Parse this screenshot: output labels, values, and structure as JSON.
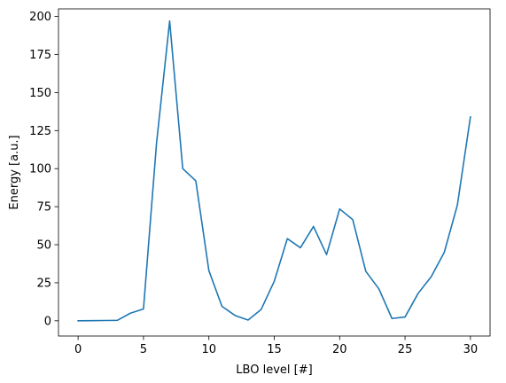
{
  "chart_data": {
    "type": "line",
    "title": "",
    "xlabel": "LBO level [#]",
    "ylabel": "Energy [a.u.]",
    "xlim": [
      -1.5,
      31.5
    ],
    "ylim": [
      -10,
      205
    ],
    "xticks": [
      0,
      5,
      10,
      15,
      20,
      25,
      30
    ],
    "yticks": [
      0,
      25,
      50,
      75,
      100,
      125,
      150,
      175,
      200
    ],
    "grid": false,
    "legend": "none",
    "series": [
      {
        "color": "#1f77b4",
        "x": [
          0,
          1,
          2,
          3,
          4,
          5,
          6,
          7,
          8,
          9,
          10,
          11,
          12,
          13,
          14,
          15,
          16,
          17,
          18,
          19,
          20,
          21,
          22,
          23,
          24,
          25,
          26,
          27,
          28,
          29,
          30
        ],
        "y": [
          0,
          0.1,
          0.2,
          0.3,
          5,
          7.8,
          117,
          197,
          100,
          92,
          33,
          9.5,
          3.5,
          0.5,
          7.5,
          26,
          54,
          48,
          62,
          43.5,
          73.5,
          66.5,
          32.5,
          21,
          1.5,
          2.5,
          18,
          29,
          45,
          76,
          134
        ]
      }
    ]
  }
}
